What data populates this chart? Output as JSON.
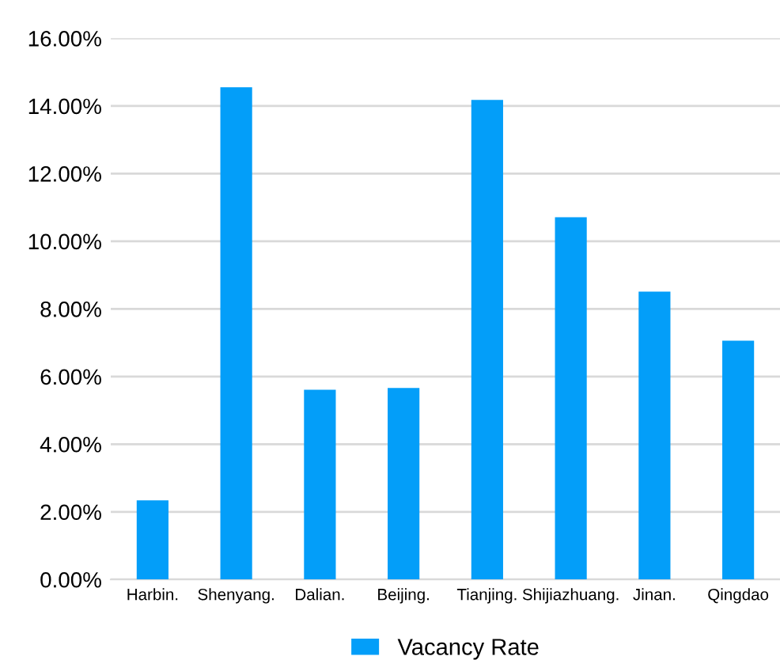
{
  "chart_data": {
    "type": "bar",
    "categories": [
      "Harbin.",
      "Shenyang.",
      "Dalian.",
      "Beijing.",
      "Tianjing.",
      "Shijiazhuang.",
      "Jinan.",
      "Qingdao"
    ],
    "series": [
      {
        "name": "Vacancy Rate",
        "color": "#039ef9",
        "values": [
          2.34,
          14.55,
          5.61,
          5.66,
          14.18,
          10.71,
          8.51,
          7.06
        ]
      }
    ],
    "ylim": [
      0,
      16
    ],
    "yticks": [
      {
        "value": 0,
        "label": "0.00%"
      },
      {
        "value": 2,
        "label": "2.00%"
      },
      {
        "value": 4,
        "label": "4.00%"
      },
      {
        "value": 6,
        "label": "6.00%"
      },
      {
        "value": 8,
        "label": "8.00%"
      },
      {
        "value": 10,
        "label": "10.00%"
      },
      {
        "value": 12,
        "label": "12.00%"
      },
      {
        "value": 14,
        "label": "14.00%"
      },
      {
        "value": 16,
        "label": "16.00%"
      }
    ],
    "grid": "y",
    "legend": "bottom"
  }
}
